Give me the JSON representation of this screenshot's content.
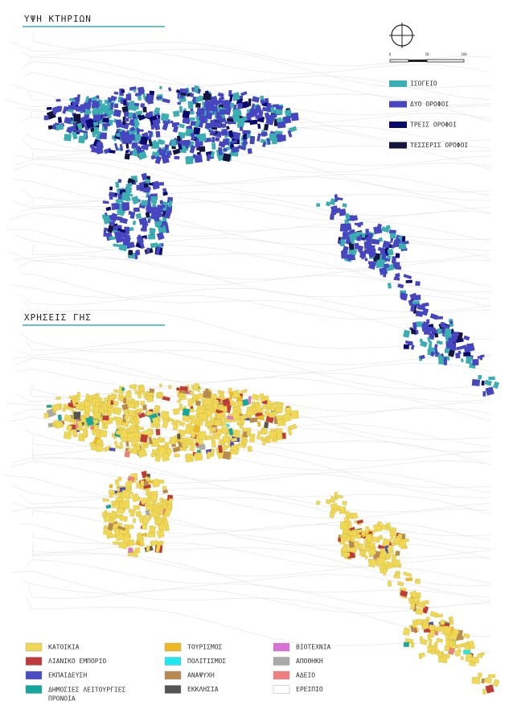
{
  "top_map": {
    "title": "ΥΨΗ ΚΤΗΡΙΩΝ",
    "scale_labels": [
      "0",
      "50",
      "100"
    ],
    "legend": [
      {
        "label": "ΙΣΟΓΕΙΟ",
        "color": "#3aaeb0"
      },
      {
        "label": "ΔΥΟ ΟΡΟΦΟΙ",
        "color": "#4646c0"
      },
      {
        "label": "ΤΡΕΙΣ ΟΡΟΦΟΙ",
        "color": "#0a0a6e"
      },
      {
        "label": "ΤΕΣΣΕΡΙΣ ΟΡΟΦΟΙ",
        "color": "#14143c"
      }
    ]
  },
  "bottom_map": {
    "title": "ΧΡΗΣΕΙΣ ΓΗΣ",
    "legend": [
      {
        "label": "ΚΑΤΟΙΚΙΑ",
        "color": "#f0d855"
      },
      {
        "label": "ΛΙΑΝΙΚΟ ΕΜΠΟΡΙΟ",
        "color": "#c0393c"
      },
      {
        "label": "ΕΚΠΑΙΔΕΥΣΗ",
        "color": "#4b4bc4"
      },
      {
        "label": "ΔΗΜΟΣΙΕΣ ΛΕΙΤΟΥΡΓΙΕΣ ΠΡΟΝΟΙΑ",
        "color": "#12a8a0"
      },
      {
        "label": "ΤΟΥΡΙΣΜΟΣ",
        "color": "#f0b820"
      },
      {
        "label": "ΠΟΛΙΤΙΣΜΟΣ",
        "color": "#20e8f0"
      },
      {
        "label": "ΑΝΑΨΥΧΗ",
        "color": "#b88a52"
      },
      {
        "label": "ΕΚΚΛΗΣΙΑ",
        "color": "#555555"
      },
      {
        "label": "ΒΙΟΤΕΧΝΙΑ",
        "color": "#d870d8"
      },
      {
        "label": "ΑΠΟΘΗΚΗ",
        "color": "#aaaaaa"
      },
      {
        "label": "ΑΔΕΙΟ",
        "color": "#f08080"
      },
      {
        "label": "ΕΡΕΙΠΙΟ",
        "color": "#ffffff"
      }
    ]
  }
}
